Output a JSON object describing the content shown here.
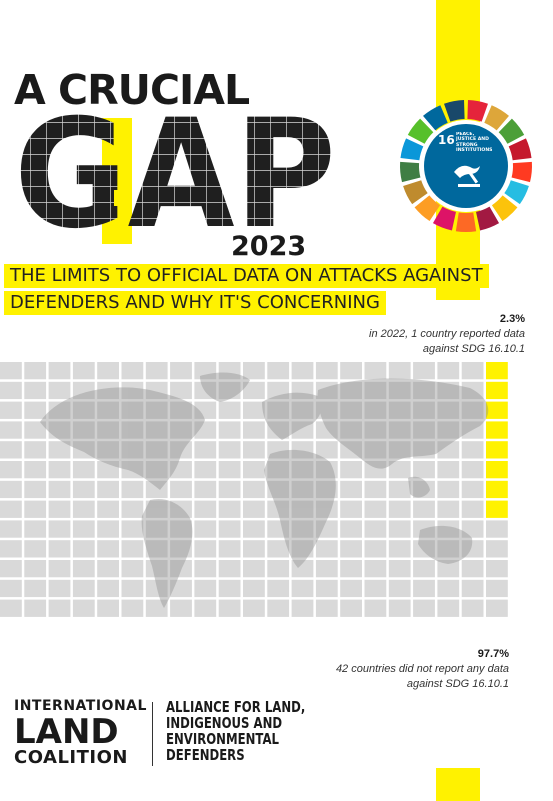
{
  "title_line1": "A CRUCIAL",
  "title_word": "GAP",
  "year": "2023",
  "subtitle": {
    "line1": "THE LIMITS TO OFFICIAL DATA ON ATTACKS AGAINST",
    "line2": "DEFENDERS AND WHY IT'S CONCERNING"
  },
  "sdg_badge": {
    "number": "16",
    "title": "PEACE, JUSTICE AND STRONG INSTITUTIONS",
    "icon": "dove-gavel-icon"
  },
  "stats": {
    "reported": {
      "value": "2.3%",
      "text": "in 2022, 1 country reported data against SDG 16.10.1"
    },
    "not_reported": {
      "value": "97.7%",
      "text": "42 countries did not report any data against SDG 16.10.1"
    }
  },
  "waffle": {
    "reported_fraction": 0.023,
    "not_reported_fraction": 0.977
  },
  "logos": {
    "ilc": {
      "line1": "INTERNATIONAL",
      "line2": "LAND",
      "line3": "COALITION"
    },
    "alliance": {
      "line1": "ALLIANCE FOR LAND,",
      "line2": "INDIGENOUS AND",
      "line3": "ENVIRONMENTAL",
      "line4": "DEFENDERS"
    }
  },
  "colors": {
    "accent_yellow": "#fff200",
    "text_dark": "#1a1a1a",
    "grid_gray": "#d9d9d9",
    "sdg16_blue": "#00689d"
  }
}
